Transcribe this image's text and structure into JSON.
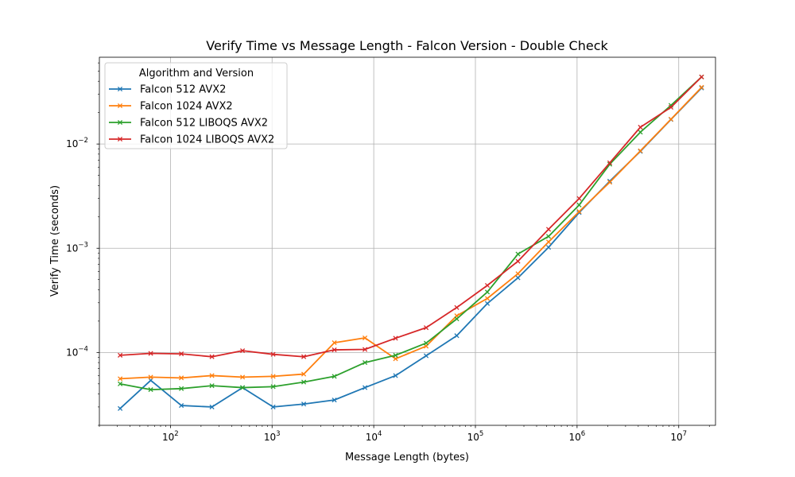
{
  "chart_data": {
    "type": "line",
    "title": "Verify Time vs Message Length - Falcon Version - Double Check",
    "xlabel": "Message Length (bytes)",
    "ylabel": "Verify Time (seconds)",
    "xscale": "log",
    "yscale": "log",
    "xlim": [
      20,
      23000000
    ],
    "ylim": [
      2e-05,
      0.068
    ],
    "grid": true,
    "legend_title": "Algorithm and Version",
    "legend_position": "top-left",
    "x_ticks": [
      {
        "value": 100,
        "base": "10",
        "exp": "2"
      },
      {
        "value": 1000,
        "base": "10",
        "exp": "3"
      },
      {
        "value": 10000,
        "base": "10",
        "exp": "4"
      },
      {
        "value": 100000,
        "base": "10",
        "exp": "5"
      },
      {
        "value": 1000000,
        "base": "10",
        "exp": "6"
      },
      {
        "value": 10000000,
        "base": "10",
        "exp": "7"
      }
    ],
    "y_ticks": [
      {
        "value": 0.0001,
        "base": "10",
        "exp": "−4"
      },
      {
        "value": 0.001,
        "base": "10",
        "exp": "−3"
      },
      {
        "value": 0.01,
        "base": "10",
        "exp": "−2"
      }
    ],
    "x": [
      32,
      64,
      128,
      256,
      512,
      1024,
      2048,
      4096,
      8192,
      16384,
      32768,
      65536,
      131072,
      262144,
      524288,
      1048576,
      2097152,
      4194304,
      8388608,
      16777216
    ],
    "series": [
      {
        "name": "Falcon 512 AVX2",
        "color": "#1f77b4",
        "values": [
          2.9e-05,
          5.4e-05,
          3.1e-05,
          3e-05,
          4.6e-05,
          3e-05,
          3.2e-05,
          3.5e-05,
          4.6e-05,
          6e-05,
          9.3e-05,
          0.000145,
          0.000295,
          0.00052,
          0.00102,
          0.0022,
          0.0044,
          0.0085,
          0.0172,
          0.0345
        ]
      },
      {
        "name": "Falcon 1024 AVX2",
        "color": "#ff7f0e",
        "values": [
          5.6e-05,
          5.8e-05,
          5.7e-05,
          6e-05,
          5.8e-05,
          5.9e-05,
          6.2e-05,
          0.000124,
          0.000138,
          8.7e-05,
          0.000115,
          0.000225,
          0.00033,
          0.00057,
          0.00115,
          0.00225,
          0.0043,
          0.0086,
          0.0173,
          0.035
        ]
      },
      {
        "name": "Falcon 512 LIBOQS AVX2",
        "color": "#2ca02c",
        "values": [
          5e-05,
          4.4e-05,
          4.5e-05,
          4.8e-05,
          4.6e-05,
          4.7e-05,
          5.2e-05,
          5.9e-05,
          8e-05,
          9.4e-05,
          0.000123,
          0.00021,
          0.00038,
          0.00088,
          0.0013,
          0.0026,
          0.0064,
          0.013,
          0.0235,
          0.044
        ]
      },
      {
        "name": "Falcon 1024 LIBOQS AVX2",
        "color": "#d62728",
        "values": [
          9.4e-05,
          9.8e-05,
          9.7e-05,
          9.1e-05,
          0.000104,
          9.6e-05,
          9.1e-05,
          0.000106,
          0.000107,
          0.000137,
          0.000173,
          0.00027,
          0.00044,
          0.00075,
          0.00152,
          0.003,
          0.0066,
          0.0145,
          0.0225,
          0.044
        ]
      }
    ]
  }
}
